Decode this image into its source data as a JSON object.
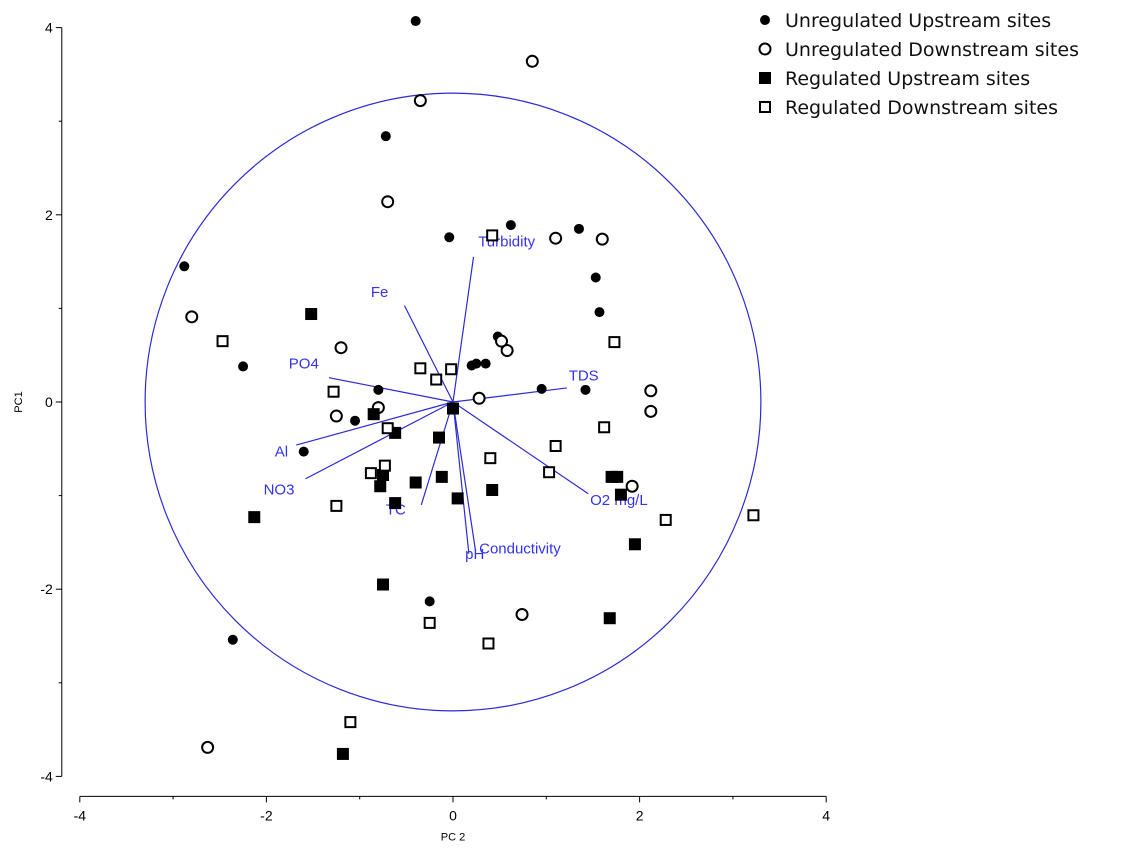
{
  "chart_data": {
    "type": "scatter",
    "xlabel": "PC 2",
    "ylabel": "PC1",
    "xlim": [
      -4,
      4
    ],
    "ylim": [
      -4,
      4
    ],
    "xticks": [
      "-4",
      "-2",
      "0",
      "2",
      "4"
    ],
    "yticks": [
      "4",
      "2",
      "0",
      "-2",
      "-4"
    ],
    "grid": false,
    "legend_position": "top-right",
    "circle_radius": 3.3,
    "colors": {
      "points": "#000000",
      "vectors": "#2b2bd6",
      "vector_labels": "#3333ee"
    },
    "series": [
      {
        "name": "Unregulated Upstream sites",
        "marker": "filled-circle",
        "points": [
          [
            -0.4,
            4.07
          ],
          [
            -0.72,
            2.84
          ],
          [
            -0.04,
            1.76
          ],
          [
            0.62,
            1.89
          ],
          [
            1.35,
            1.85
          ],
          [
            -2.88,
            1.45
          ],
          [
            1.53,
            1.33
          ],
          [
            1.57,
            0.96
          ],
          [
            -2.25,
            0.38
          ],
          [
            0.48,
            0.7
          ],
          [
            0.2,
            0.39
          ],
          [
            0.25,
            0.41
          ],
          [
            0.35,
            0.41
          ],
          [
            0.95,
            0.14
          ],
          [
            1.42,
            0.13
          ],
          [
            -0.8,
            0.13
          ],
          [
            -1.05,
            -0.2
          ],
          [
            -1.6,
            -0.53
          ],
          [
            -0.25,
            -2.13
          ],
          [
            -2.36,
            -2.54
          ]
        ]
      },
      {
        "name": "Unregulated Downstream sites",
        "marker": "open-circle",
        "points": [
          [
            0.85,
            3.64
          ],
          [
            -0.35,
            3.22
          ],
          [
            -0.7,
            2.14
          ],
          [
            1.1,
            1.75
          ],
          [
            1.6,
            1.74
          ],
          [
            -2.8,
            0.91
          ],
          [
            -1.2,
            0.58
          ],
          [
            0.52,
            0.65
          ],
          [
            0.58,
            0.55
          ],
          [
            2.12,
            0.12
          ],
          [
            0.28,
            0.04
          ],
          [
            -0.8,
            -0.06
          ],
          [
            -1.25,
            -0.15
          ],
          [
            2.12,
            -0.1
          ],
          [
            1.92,
            -0.9
          ],
          [
            0.74,
            -2.27
          ],
          [
            -2.63,
            -3.69
          ]
        ]
      },
      {
        "name": "Regulated Upstream sites",
        "marker": "filled-square",
        "points": [
          [
            -1.52,
            0.94
          ],
          [
            -0.85,
            -0.13
          ],
          [
            -0.62,
            -0.33
          ],
          [
            0.0,
            -0.07
          ],
          [
            -0.15,
            -0.38
          ],
          [
            -0.75,
            -0.78
          ],
          [
            -0.78,
            -0.9
          ],
          [
            -0.12,
            -0.8
          ],
          [
            -0.4,
            -0.86
          ],
          [
            -0.62,
            -1.08
          ],
          [
            0.05,
            -1.03
          ],
          [
            0.42,
            -0.94
          ],
          [
            1.7,
            -0.8
          ],
          [
            1.76,
            -0.8
          ],
          [
            1.8,
            -0.99
          ],
          [
            -2.13,
            -1.23
          ],
          [
            1.95,
            -1.52
          ],
          [
            -0.75,
            -1.95
          ],
          [
            1.68,
            -2.31
          ],
          [
            -1.18,
            -3.76
          ]
        ]
      },
      {
        "name": "Regulated Downstream sites",
        "marker": "open-square",
        "points": [
          [
            0.42,
            1.78
          ],
          [
            -2.47,
            0.65
          ],
          [
            1.73,
            0.64
          ],
          [
            -0.35,
            0.36
          ],
          [
            -0.02,
            0.35
          ],
          [
            -0.18,
            0.24
          ],
          [
            -1.28,
            0.11
          ],
          [
            -0.7,
            -0.28
          ],
          [
            1.62,
            -0.27
          ],
          [
            1.1,
            -0.47
          ],
          [
            0.4,
            -0.6
          ],
          [
            -0.73,
            -0.68
          ],
          [
            1.03,
            -0.75
          ],
          [
            -0.88,
            -0.76
          ],
          [
            -1.25,
            -1.11
          ],
          [
            2.28,
            -1.26
          ],
          [
            3.22,
            -1.21
          ],
          [
            -0.25,
            -2.36
          ],
          [
            0.38,
            -2.58
          ],
          [
            -1.1,
            -3.42
          ]
        ]
      }
    ],
    "vectors": [
      {
        "label": "Turbidity",
        "x": 0.22,
        "y": 1.55,
        "lx": 0.27,
        "ly": 1.66
      },
      {
        "label": "Fe",
        "x": -0.52,
        "y": 1.03,
        "lx": -0.88,
        "ly": 1.12
      },
      {
        "label": "PO4",
        "x": -1.33,
        "y": 0.26,
        "lx": -1.76,
        "ly": 0.36
      },
      {
        "label": "TDS",
        "x": 1.22,
        "y": 0.15,
        "lx": 1.24,
        "ly": 0.23
      },
      {
        "label": "Al",
        "x": -1.68,
        "y": -0.46,
        "lx": -1.91,
        "ly": -0.58
      },
      {
        "label": "NO3",
        "x": -1.58,
        "y": -0.82,
        "lx": -2.03,
        "ly": -0.99
      },
      {
        "label": "TC",
        "x": -0.34,
        "y": -1.1,
        "lx": -0.72,
        "ly": -1.2
      },
      {
        "label": "pH",
        "x": 0.17,
        "y": -1.62,
        "lx": 0.13,
        "ly": -1.68
      },
      {
        "label": "Conductivity",
        "x": 0.24,
        "y": -1.58,
        "lx": 0.28,
        "ly": -1.62
      },
      {
        "label": "O2 mg/L",
        "x": 1.45,
        "y": -0.98,
        "lx": 1.47,
        "ly": -1.1
      }
    ]
  }
}
